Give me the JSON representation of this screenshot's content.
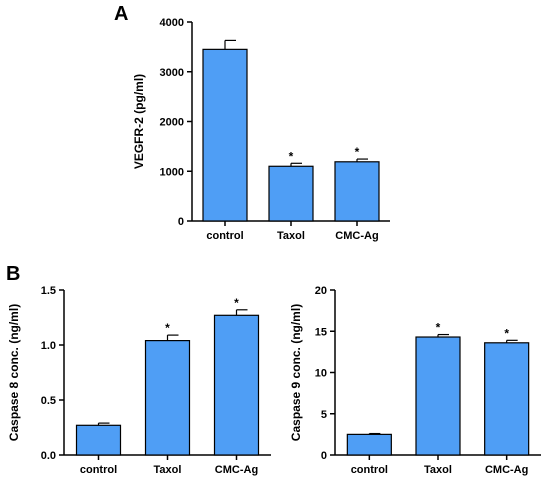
{
  "panel_labels": [
    "A",
    "B"
  ],
  "colors": {
    "bar_fill": "#4f9ef5",
    "bar_stroke": "#000000",
    "axis": "#000000"
  },
  "chart_data": [
    {
      "type": "bar",
      "panel": "A",
      "title": "",
      "xlabel": "",
      "ylabel": "VEGFR-2 (pg/ml)",
      "categories": [
        "control",
        "Taxol",
        "CMC-Ag"
      ],
      "values": [
        3450,
        1100,
        1190
      ],
      "errors": [
        180,
        60,
        55
      ],
      "significance": [
        "",
        "*",
        "*"
      ],
      "ylim": [
        0,
        4000
      ],
      "yticks": [
        0,
        1000,
        2000,
        3000,
        4000
      ],
      "ytick_labels": [
        "0",
        "1000",
        "2000",
        "3000",
        "4000"
      ],
      "grid": false
    },
    {
      "type": "bar",
      "panel": "B",
      "title": "",
      "xlabel": "",
      "ylabel": "Caspase 8 conc. (ng/ml)",
      "categories": [
        "control",
        "Taxol",
        "CMC-Ag"
      ],
      "values": [
        0.27,
        1.04,
        1.27
      ],
      "errors": [
        0.02,
        0.05,
        0.05
      ],
      "significance": [
        "",
        "*",
        "*"
      ],
      "ylim": [
        0,
        1.5
      ],
      "yticks": [
        0,
        0.5,
        1.0,
        1.5
      ],
      "ytick_labels": [
        "0.0",
        "0.5",
        "1.0",
        "1.5"
      ],
      "grid": false
    },
    {
      "type": "bar",
      "panel": "B",
      "title": "",
      "xlabel": "",
      "ylabel": "Caspase 9 conc. (ng/ml)",
      "categories": [
        "control",
        "Taxol",
        "CMC-Ag"
      ],
      "values": [
        2.5,
        14.3,
        13.6
      ],
      "errors": [
        0.1,
        0.3,
        0.3
      ],
      "significance": [
        "",
        "*",
        "*"
      ],
      "ylim": [
        0,
        20
      ],
      "yticks": [
        0,
        5,
        10,
        15,
        20
      ],
      "ytick_labels": [
        "0",
        "5",
        "10",
        "15",
        "20"
      ],
      "grid": false
    }
  ]
}
